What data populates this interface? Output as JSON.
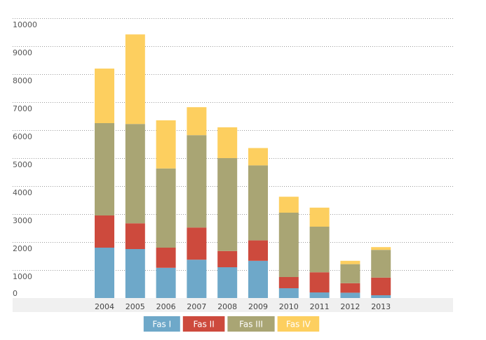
{
  "chart_data": {
    "type": "bar",
    "stacked": true,
    "title": "",
    "xlabel": "",
    "ylabel": "",
    "ylim": [
      0,
      10000
    ],
    "yticks": [
      0,
      1000,
      2000,
      3000,
      4000,
      5000,
      6000,
      7000,
      8000,
      9000,
      10000
    ],
    "ytick_labels": [
      "0",
      "1000",
      "2000",
      "3000",
      "4000",
      "5000",
      "6000",
      "7000",
      "8000",
      "9000",
      "10000"
    ],
    "categories": [
      "2004",
      "2005",
      "2006",
      "2007",
      "2008",
      "2009",
      "2010",
      "2011",
      "2012",
      "2013"
    ],
    "series": [
      {
        "name": "Fas I",
        "color": "#6ea8c9",
        "values": [
          1800,
          1750,
          1080,
          1370,
          1100,
          1330,
          350,
          200,
          190,
          100
        ]
      },
      {
        "name": "Fas II",
        "color": "#cd4a3d",
        "values": [
          1150,
          920,
          720,
          1150,
          580,
          730,
          400,
          720,
          340,
          630
        ]
      },
      {
        "name": "Fas III",
        "color": "#a9a574",
        "values": [
          3300,
          3550,
          2830,
          3300,
          3320,
          2680,
          2300,
          1630,
          680,
          990
        ]
      },
      {
        "name": "Fas IV",
        "color": "#fdcf5f",
        "values": [
          1950,
          3200,
          1720,
          1000,
          1100,
          620,
          570,
          680,
          120,
          100
        ]
      }
    ],
    "grid": true,
    "legend_position": "bottom-center"
  }
}
